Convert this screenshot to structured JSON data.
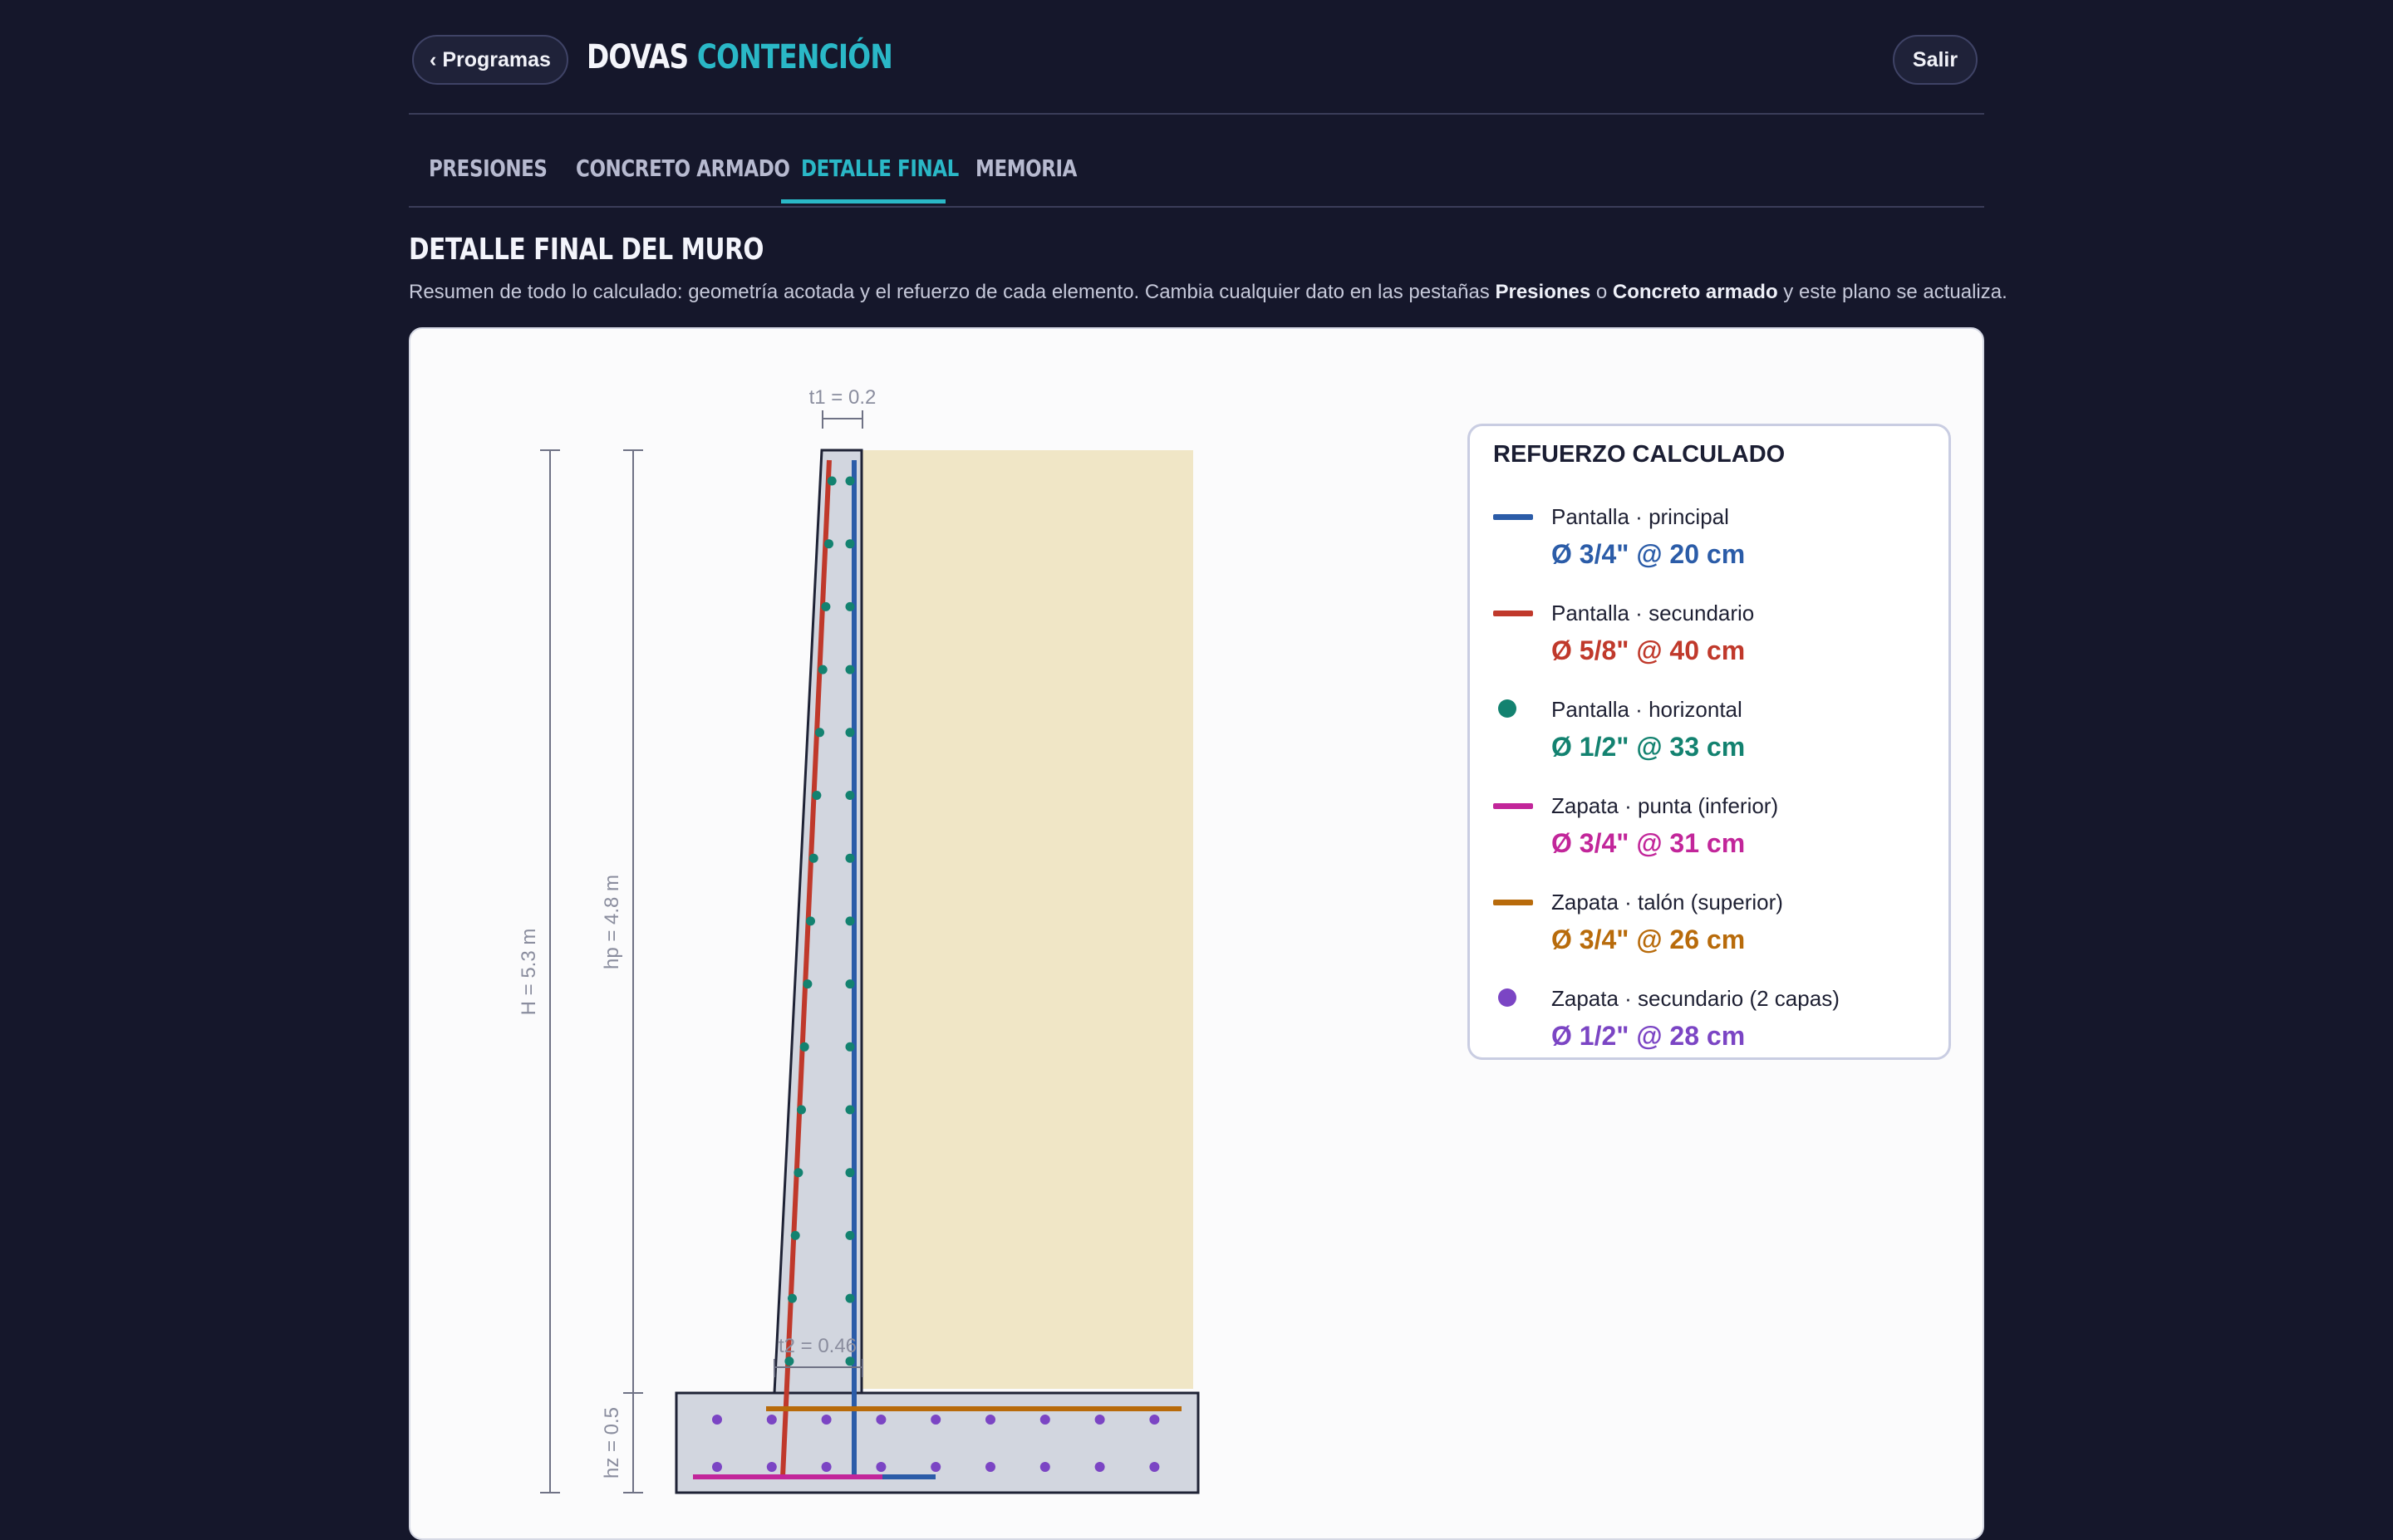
{
  "header": {
    "back_label": "‹ Programas",
    "brand_part1": "DOVAS",
    "brand_part2": "CONTENCIÓN",
    "exit_label": "Salir"
  },
  "tabs": [
    {
      "label": "PRESIONES"
    },
    {
      "label": "CONCRETO ARMADO"
    },
    {
      "label": "DETALLE FINAL",
      "active": true
    },
    {
      "label": "MEMORIA"
    }
  ],
  "section": {
    "title": "DETALLE FINAL DEL MURO",
    "desc_prefix": "Resumen de todo lo calculado: geometría acotada y el refuerzo de cada elemento. Cambia cualquier dato en las pestañas ",
    "desc_bold1": "Presiones",
    "desc_mid": " o ",
    "desc_bold2": "Concreto armado",
    "desc_suffix": " y este plano se actualiza."
  },
  "drawing": {
    "dim_t1": "t1 = 0.2",
    "dim_t2": "t2 = 0.46",
    "dim_H": "H = 5.3 m",
    "dim_hp": "hp = 4.8 m",
    "dim_hz": "hz = 0.5",
    "colors": {
      "concrete": "#d2d6df",
      "soil": "#f0e6c6",
      "outline": "#1e2235",
      "dims": "#8a8d9e"
    }
  },
  "legend": {
    "title": "REFUERZO CALCULADO",
    "items": [
      {
        "label": "Pantalla · principal",
        "value": "Ø 3/4\" @ 20 cm",
        "color": "#2b5ca8",
        "marker": "line"
      },
      {
        "label": "Pantalla · secundario",
        "value": "Ø 5/8\" @ 40 cm",
        "color": "#c0392b",
        "marker": "line"
      },
      {
        "label": "Pantalla · horizontal",
        "value": "Ø 1/2\" @ 33 cm",
        "color": "#138270",
        "marker": "dot"
      },
      {
        "label": "Zapata · punta (inferior)",
        "value": "Ø 3/4\" @ 31 cm",
        "color": "#c2269a",
        "marker": "line"
      },
      {
        "label": "Zapata · talón (superior)",
        "value": "Ø 3/4\" @ 26 cm",
        "color": "#b86b0b",
        "marker": "line"
      },
      {
        "label": "Zapata · secundario (2 capas)",
        "value": "Ø 1/2\" @ 28 cm",
        "color": "#7b45c4",
        "marker": "dot"
      }
    ]
  }
}
